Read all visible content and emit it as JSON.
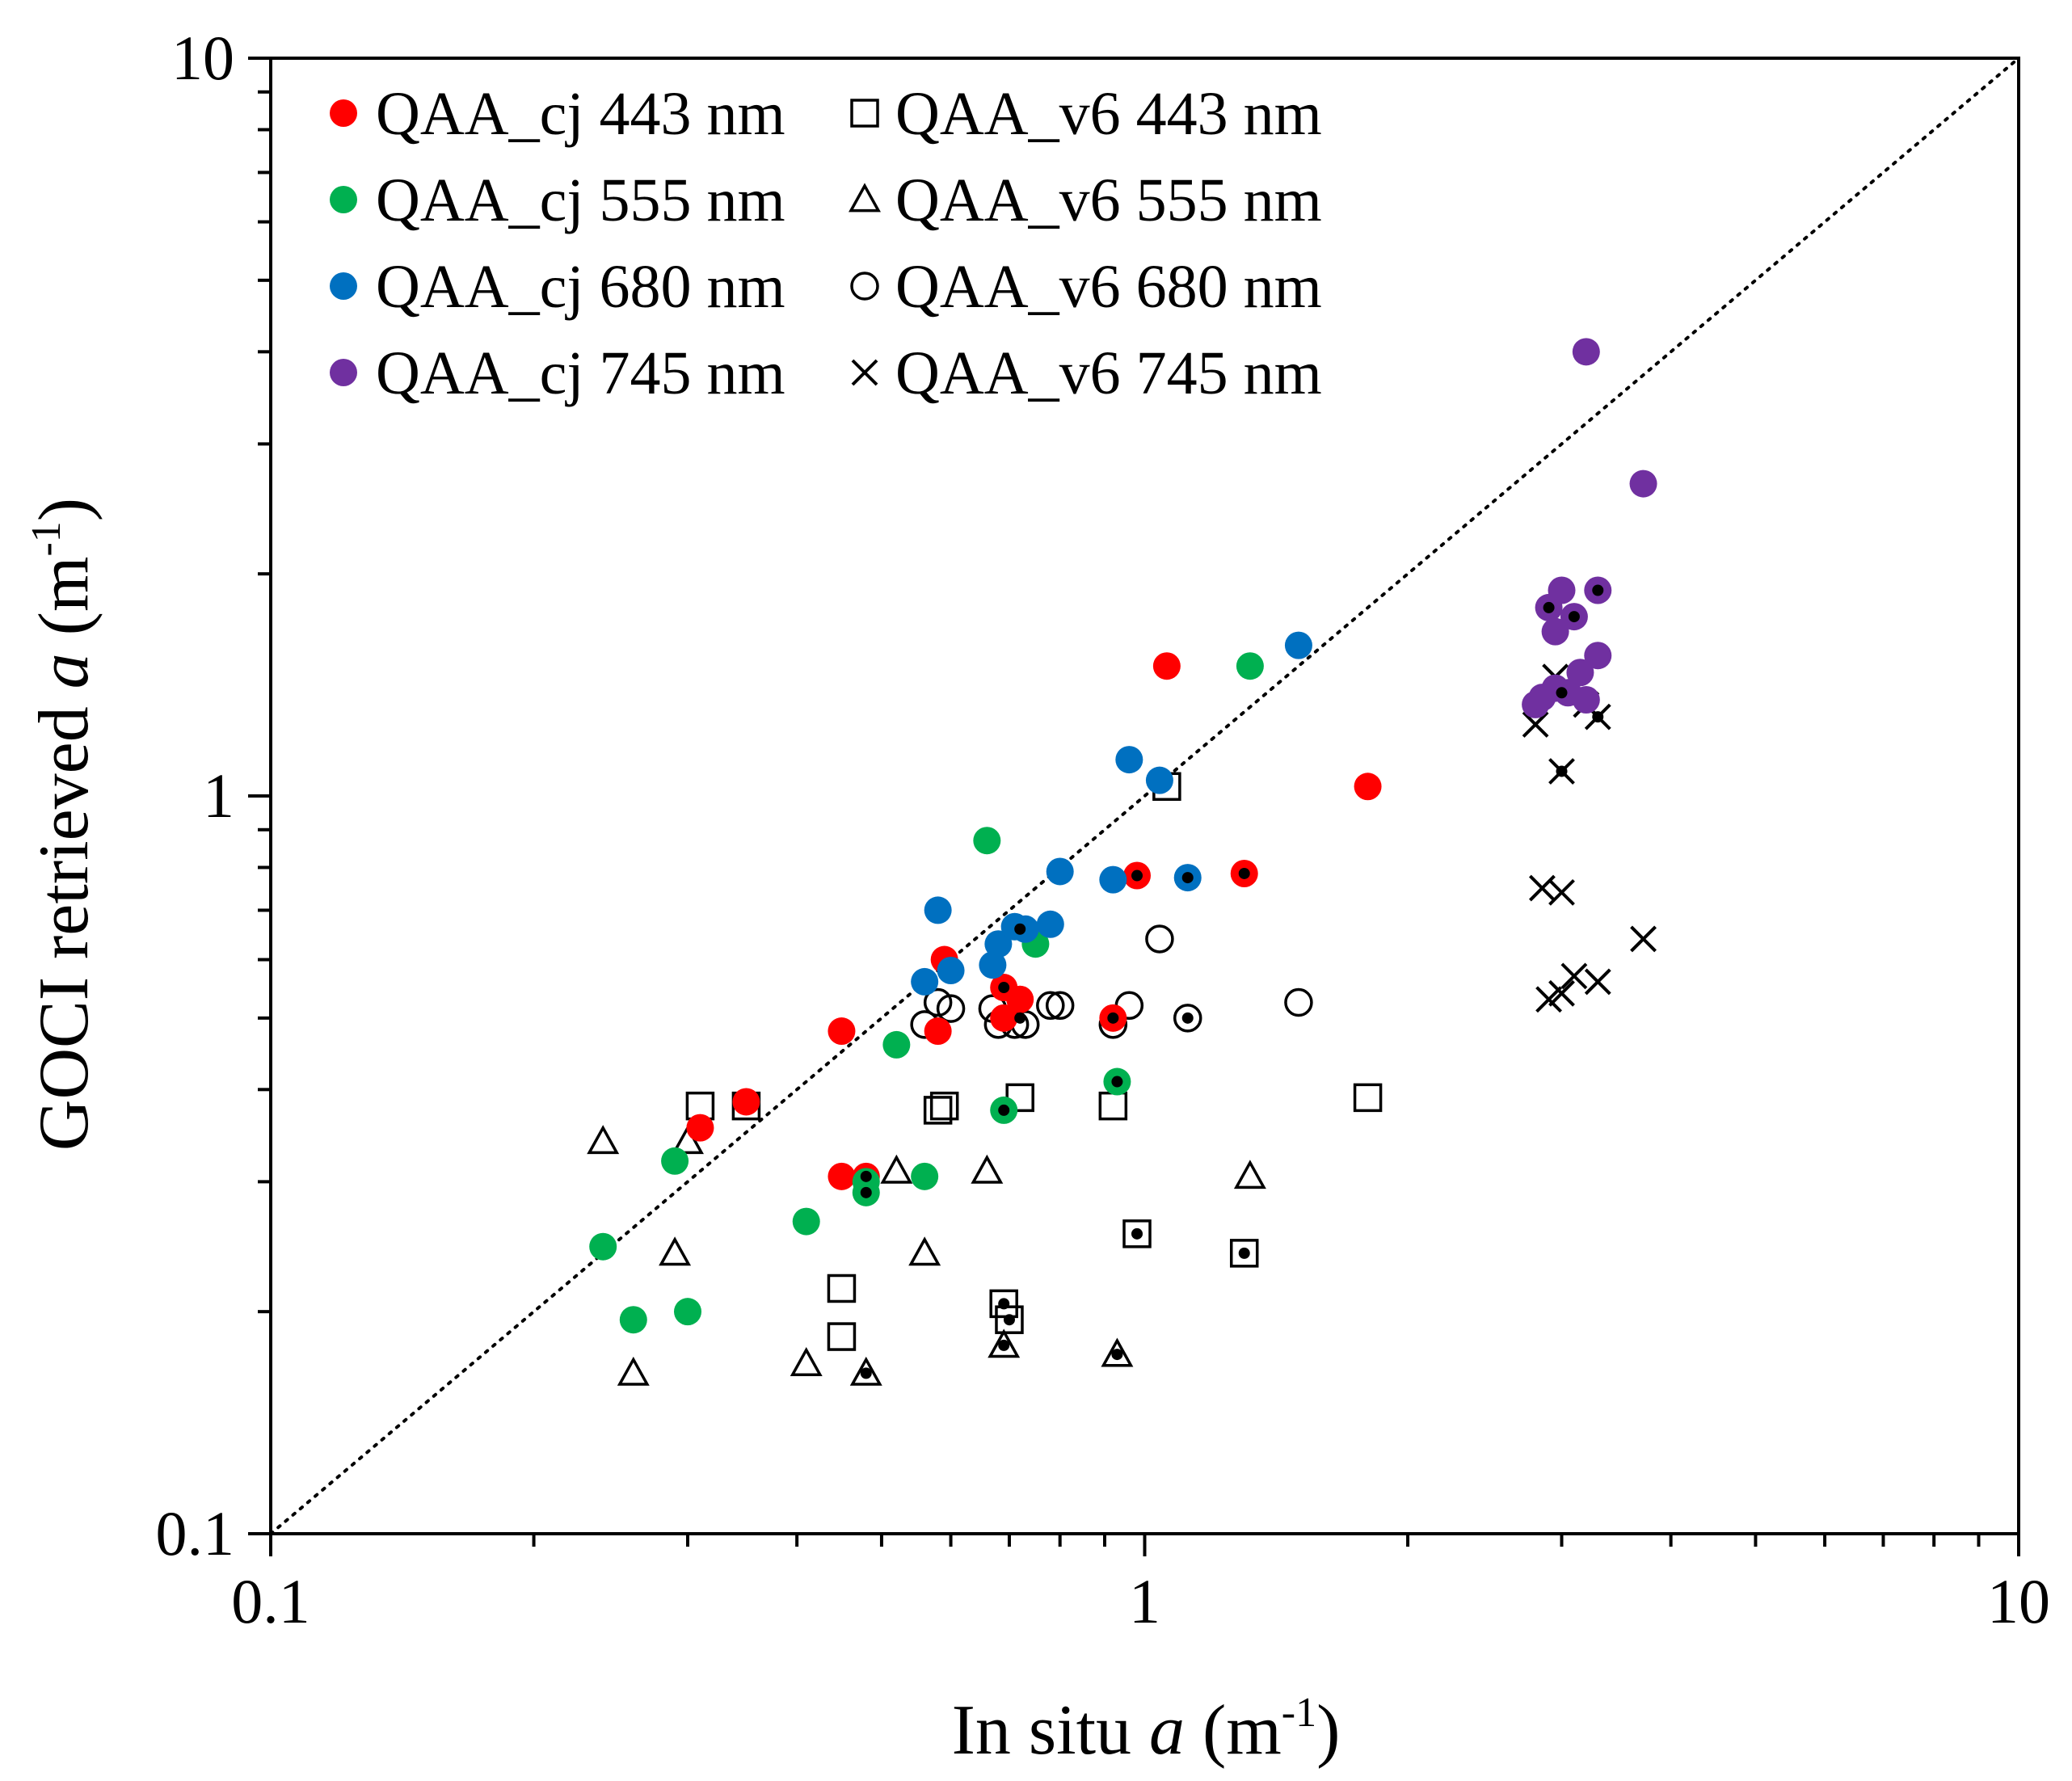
{
  "chart_data": {
    "type": "scatter",
    "xscale": "log",
    "yscale": "log",
    "xlim": [
      0.1,
      10
    ],
    "ylim": [
      0.1,
      10
    ],
    "x_ticks": [
      0.1,
      1,
      10
    ],
    "x_tick_labels": [
      "0.1",
      "1",
      "10"
    ],
    "y_ticks": [
      0.1,
      1,
      10
    ],
    "y_tick_labels": [
      "0.1",
      "1",
      "10"
    ],
    "xlabel": {
      "prefix": "In situ ",
      "var": "a",
      "unit_pre": " (m",
      "sup": "-1",
      "unit_post": ")"
    },
    "ylabel": {
      "prefix": "GOCI retrieved ",
      "var": "a",
      "unit_pre": " (m",
      "sup": "-1",
      "unit_post": ")"
    },
    "reference_line": "1:1",
    "legend_position": "top-left",
    "series": [
      {
        "name": "QAA_cj 443 nm",
        "marker": "filled-circle",
        "color": "#ff0000",
        "points": [
          [
            0.31,
            0.355
          ],
          [
            0.35,
            0.385
          ],
          [
            0.45,
            0.48
          ],
          [
            0.45,
            0.305
          ],
          [
            0.48,
            0.305
          ],
          [
            0.58,
            0.48
          ],
          [
            0.59,
            0.6
          ],
          [
            0.69,
            0.55
          ],
          [
            0.69,
            0.5
          ],
          [
            0.72,
            0.53
          ],
          [
            0.92,
            0.5
          ],
          [
            0.98,
            0.78
          ],
          [
            1.06,
            1.5
          ],
          [
            1.3,
            0.785
          ],
          [
            1.8,
            1.03
          ]
        ]
      },
      {
        "name": "QAA_cj 555 nm",
        "marker": "filled-circle",
        "color": "#00b050",
        "points": [
          [
            0.24,
            0.245
          ],
          [
            0.26,
            0.195
          ],
          [
            0.29,
            0.32
          ],
          [
            0.3,
            0.2
          ],
          [
            0.41,
            0.265
          ],
          [
            0.48,
            0.3
          ],
          [
            0.48,
            0.29
          ],
          [
            0.52,
            0.46
          ],
          [
            0.56,
            0.305
          ],
          [
            0.66,
            0.87
          ],
          [
            0.69,
            0.375
          ],
          [
            0.75,
            0.63
          ],
          [
            0.93,
            0.41
          ],
          [
            1.32,
            1.5
          ]
        ]
      },
      {
        "name": "QAA_cj 680 nm",
        "marker": "filled-circle",
        "color": "#0070c0",
        "points": [
          [
            0.56,
            0.56
          ],
          [
            0.58,
            0.7
          ],
          [
            0.6,
            0.58
          ],
          [
            0.67,
            0.59
          ],
          [
            0.68,
            0.63
          ],
          [
            0.71,
            0.665
          ],
          [
            0.73,
            0.66
          ],
          [
            0.78,
            0.67
          ],
          [
            0.8,
            0.79
          ],
          [
            0.92,
            0.77
          ],
          [
            0.96,
            1.12
          ],
          [
            1.04,
            1.05
          ],
          [
            1.12,
            0.775
          ],
          [
            1.5,
            1.6
          ]
        ]
      },
      {
        "name": "QAA_cj 745 nm",
        "marker": "filled-circle",
        "color": "#7030a0",
        "points": [
          [
            2.8,
            1.33
          ],
          [
            2.85,
            1.36
          ],
          [
            2.9,
            1.8
          ],
          [
            2.95,
            1.67
          ],
          [
            2.95,
            1.4
          ],
          [
            3.0,
            1.9
          ],
          [
            3.05,
            1.38
          ],
          [
            3.1,
            1.75
          ],
          [
            3.15,
            1.47
          ],
          [
            3.3,
            1.9
          ],
          [
            3.3,
            1.55
          ],
          [
            3.2,
            1.35
          ],
          [
            3.2,
            4.0
          ],
          [
            3.72,
            2.65
          ]
        ]
      },
      {
        "name": "QAA_v6 443 nm",
        "marker": "open-square",
        "color": "#000000",
        "points": [
          [
            0.31,
            0.38
          ],
          [
            0.35,
            0.38
          ],
          [
            0.45,
            0.215
          ],
          [
            0.45,
            0.185
          ],
          [
            0.58,
            0.375
          ],
          [
            0.59,
            0.38
          ],
          [
            0.69,
            0.205
          ],
          [
            0.7,
            0.195
          ],
          [
            0.72,
            0.39
          ],
          [
            0.92,
            0.38
          ],
          [
            0.98,
            0.255
          ],
          [
            1.06,
            1.03
          ],
          [
            1.3,
            0.24
          ],
          [
            1.8,
            0.39
          ]
        ]
      },
      {
        "name": "QAA_v6 555 nm",
        "marker": "open-triangle",
        "color": "#000000",
        "points": [
          [
            0.24,
            0.34
          ],
          [
            0.26,
            0.165
          ],
          [
            0.29,
            0.24
          ],
          [
            0.3,
            0.34
          ],
          [
            0.41,
            0.17
          ],
          [
            0.48,
            0.165
          ],
          [
            0.52,
            0.31
          ],
          [
            0.56,
            0.24
          ],
          [
            0.66,
            0.31
          ],
          [
            0.69,
            0.18
          ],
          [
            0.93,
            0.175
          ],
          [
            1.32,
            0.305
          ]
        ]
      },
      {
        "name": "QAA_v6 680 nm",
        "marker": "open-circle",
        "color": "#000000",
        "points": [
          [
            0.56,
            0.49
          ],
          [
            0.58,
            0.525
          ],
          [
            0.6,
            0.515
          ],
          [
            0.67,
            0.515
          ],
          [
            0.68,
            0.49
          ],
          [
            0.71,
            0.49
          ],
          [
            0.73,
            0.49
          ],
          [
            0.78,
            0.52
          ],
          [
            0.8,
            0.52
          ],
          [
            0.92,
            0.49
          ],
          [
            0.96,
            0.52
          ],
          [
            1.04,
            0.64
          ],
          [
            1.12,
            0.5
          ],
          [
            1.5,
            0.525
          ]
        ]
      },
      {
        "name": "QAA_v6 745 nm",
        "marker": "cross",
        "color": "#000000",
        "points": [
          [
            2.8,
            1.25
          ],
          [
            2.85,
            0.75
          ],
          [
            2.9,
            0.53
          ],
          [
            2.95,
            1.45
          ],
          [
            3.0,
            1.08
          ],
          [
            3.0,
            0.54
          ],
          [
            3.0,
            0.74
          ],
          [
            3.1,
            0.57
          ],
          [
            3.2,
            1.33
          ],
          [
            3.3,
            0.56
          ],
          [
            3.3,
            1.28
          ],
          [
            3.72,
            0.64
          ]
        ]
      }
    ],
    "dotted_markers_note": "paired points",
    "dotted_points": [
      [
        0.48,
        0.305
      ],
      [
        0.48,
        0.29
      ],
      [
        0.69,
        0.55
      ],
      [
        0.72,
        0.5
      ],
      [
        0.72,
        0.66
      ],
      [
        0.92,
        0.5
      ],
      [
        0.93,
        0.41
      ],
      [
        0.98,
        0.78
      ],
      [
        1.12,
        0.775
      ],
      [
        1.12,
        0.5
      ],
      [
        1.3,
        0.785
      ],
      [
        0.69,
        0.205
      ],
      [
        0.7,
        0.195
      ],
      [
        0.98,
        0.255
      ],
      [
        1.3,
        0.24
      ],
      [
        0.48,
        0.165
      ],
      [
        0.69,
        0.18
      ],
      [
        0.93,
        0.175
      ],
      [
        0.69,
        0.375
      ],
      [
        2.9,
        1.8
      ],
      [
        3.0,
        1.38
      ],
      [
        3.1,
        1.75
      ],
      [
        3.3,
        1.9
      ],
      [
        3.3,
        1.28
      ],
      [
        3.0,
        1.08
      ]
    ]
  }
}
